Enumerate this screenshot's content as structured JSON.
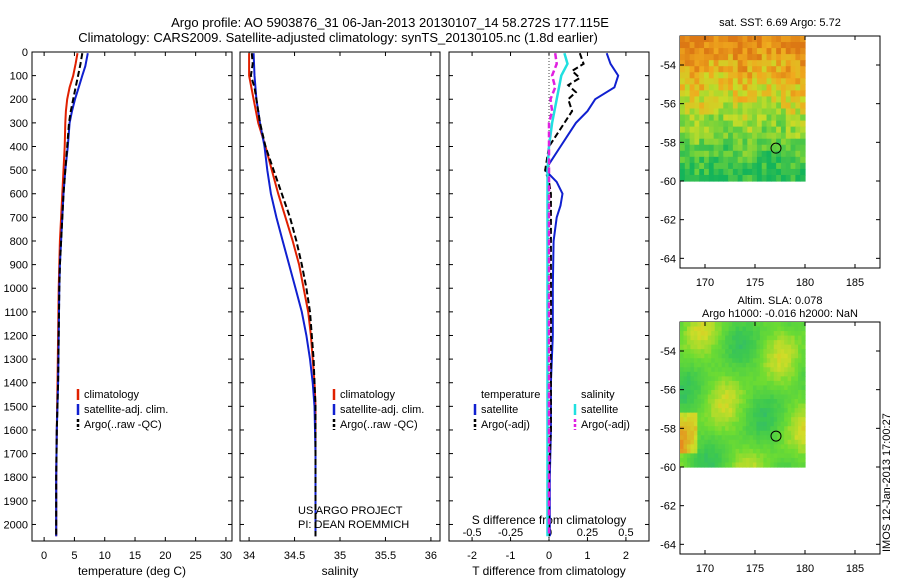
{
  "header": {
    "line1": "Argo profile: AO 5903876_31 06-Jan-2013 20130107_14 58.272S 177.115E",
    "line2": "Climatology: CARS2009. Satellite-adjusted climatology: synTS_20130105.nc (1.8d earlier)"
  },
  "colors": {
    "climatology": "#e02000",
    "satellite": "#1020d0",
    "argo": "#000000",
    "sal_satellite": "#20e0e0",
    "sal_argo": "#e020e0"
  },
  "chart_data": [
    {
      "type": "line",
      "panel": "temperature",
      "xlabel": "temperature (deg C)",
      "ylabel": "",
      "xlim": [
        -2,
        31
      ],
      "ylim": [
        2070,
        0
      ],
      "xticks": [
        0,
        5,
        10,
        15,
        20,
        25,
        30
      ],
      "yticks": [
        0,
        100,
        200,
        300,
        400,
        500,
        600,
        700,
        800,
        900,
        1000,
        1100,
        1200,
        1300,
        1400,
        1500,
        1600,
        1700,
        1800,
        1900,
        2000
      ],
      "legend": [
        "climatology",
        "satellite-adj. clim.",
        "Argo(..raw -QC)"
      ],
      "series": [
        {
          "name": "climatology",
          "style": "solid",
          "color_key": "climatology",
          "points": [
            [
              5.5,
              5
            ],
            [
              5.2,
              50
            ],
            [
              4.8,
              100
            ],
            [
              4.2,
              150
            ],
            [
              3.8,
              200
            ],
            [
              3.6,
              250
            ],
            [
              3.5,
              300
            ],
            [
              3.4,
              400
            ],
            [
              3.2,
              500
            ],
            [
              3.0,
              600
            ],
            [
              2.8,
              700
            ],
            [
              2.6,
              800
            ],
            [
              2.5,
              900
            ],
            [
              2.4,
              1000
            ],
            [
              2.3,
              1200
            ],
            [
              2.2,
              1400
            ],
            [
              2.1,
              1600
            ],
            [
              2.0,
              1800
            ],
            [
              2.0,
              2000
            ],
            [
              2.0,
              2050
            ]
          ]
        },
        {
          "name": "satellite-adj. clim.",
          "style": "solid",
          "color_key": "satellite",
          "points": [
            [
              7.2,
              5
            ],
            [
              6.8,
              60
            ],
            [
              6.3,
              100
            ],
            [
              5.7,
              150
            ],
            [
              5.1,
              200
            ],
            [
              4.6,
              250
            ],
            [
              4.2,
              300
            ],
            [
              3.9,
              400
            ],
            [
              3.5,
              500
            ],
            [
              3.2,
              600
            ],
            [
              3.0,
              700
            ],
            [
              2.8,
              800
            ],
            [
              2.6,
              900
            ],
            [
              2.5,
              1000
            ],
            [
              2.4,
              1200
            ],
            [
              2.3,
              1400
            ],
            [
              2.1,
              1600
            ],
            [
              2.0,
              1800
            ],
            [
              2.0,
              2000
            ],
            [
              2.0,
              2050
            ]
          ]
        },
        {
          "name": "Argo(..raw -QC)",
          "style": "dashed",
          "color_key": "argo",
          "points": [
            [
              6.3,
              5
            ],
            [
              6.0,
              50
            ],
            [
              5.6,
              100
            ],
            [
              5.2,
              150
            ],
            [
              4.8,
              200
            ],
            [
              4.4,
              250
            ],
            [
              4.1,
              300
            ],
            [
              3.8,
              400
            ],
            [
              3.5,
              500
            ],
            [
              3.2,
              600
            ],
            [
              3.0,
              700
            ],
            [
              2.8,
              800
            ],
            [
              2.6,
              900
            ],
            [
              2.5,
              1000
            ],
            [
              2.4,
              1200
            ],
            [
              2.3,
              1400
            ],
            [
              2.1,
              1600
            ],
            [
              2.0,
              1800
            ],
            [
              2.0,
              2000
            ],
            [
              2.0,
              2050
            ]
          ]
        }
      ]
    },
    {
      "type": "line",
      "panel": "salinity",
      "xlabel": "salinity",
      "ylabel": "",
      "xlim": [
        33.9,
        36.1
      ],
      "ylim": [
        2070,
        0
      ],
      "xticks": [
        34,
        34.5,
        35,
        35.5,
        36
      ],
      "xticklabels": [
        "34",
        "34.5",
        "35",
        "35.5",
        "36"
      ],
      "legend": [
        "climatology",
        "satellite-adj. clim.",
        "Argo(..raw -QC)"
      ],
      "series": [
        {
          "name": "climatology",
          "style": "solid",
          "color_key": "climatology",
          "points": [
            [
              34.0,
              5
            ],
            [
              34.0,
              100
            ],
            [
              34.05,
              200
            ],
            [
              34.1,
              300
            ],
            [
              34.18,
              400
            ],
            [
              34.25,
              500
            ],
            [
              34.32,
              600
            ],
            [
              34.4,
              700
            ],
            [
              34.48,
              800
            ],
            [
              34.55,
              900
            ],
            [
              34.6,
              1000
            ],
            [
              34.65,
              1100
            ],
            [
              34.68,
              1200
            ],
            [
              34.7,
              1300
            ],
            [
              34.72,
              1400
            ],
            [
              34.73,
              1500
            ],
            [
              34.73,
              1700
            ],
            [
              34.73,
              1900
            ],
            [
              34.73,
              2050
            ]
          ]
        },
        {
          "name": "satellite-adj. clim.",
          "style": "solid",
          "color_key": "satellite",
          "points": [
            [
              34.05,
              5
            ],
            [
              34.06,
              100
            ],
            [
              34.08,
              200
            ],
            [
              34.12,
              300
            ],
            [
              34.17,
              400
            ],
            [
              34.2,
              500
            ],
            [
              34.24,
              600
            ],
            [
              34.3,
              700
            ],
            [
              34.37,
              800
            ],
            [
              34.44,
              900
            ],
            [
              34.51,
              1000
            ],
            [
              34.58,
              1100
            ],
            [
              34.63,
              1200
            ],
            [
              34.67,
              1300
            ],
            [
              34.7,
              1400
            ],
            [
              34.72,
              1500
            ],
            [
              34.73,
              1700
            ],
            [
              34.73,
              1900
            ],
            [
              34.73,
              2050
            ]
          ]
        },
        {
          "name": "Argo(..raw -QC)",
          "style": "dashed",
          "color_key": "argo",
          "points": [
            [
              34.03,
              5
            ],
            [
              34.04,
              50
            ],
            [
              34.02,
              100
            ],
            [
              34.06,
              150
            ],
            [
              34.08,
              200
            ],
            [
              34.12,
              300
            ],
            [
              34.18,
              400
            ],
            [
              34.27,
              500
            ],
            [
              34.36,
              600
            ],
            [
              34.45,
              700
            ],
            [
              34.52,
              800
            ],
            [
              34.58,
              900
            ],
            [
              34.63,
              1000
            ],
            [
              34.67,
              1100
            ],
            [
              34.69,
              1200
            ],
            [
              34.71,
              1300
            ],
            [
              34.72,
              1400
            ],
            [
              34.73,
              1500
            ],
            [
              34.73,
              1700
            ],
            [
              34.73,
              1900
            ],
            [
              34.73,
              2050
            ]
          ]
        }
      ]
    },
    {
      "type": "line",
      "panel": "difference",
      "xlabel": "T difference from climatology",
      "xlabel_top": "S difference from climatology",
      "ylabel": "",
      "xlim": [
        -2.6,
        2.6
      ],
      "ylim": [
        2070,
        0
      ],
      "xticks": [
        -2,
        -1,
        0,
        1,
        2
      ],
      "xticks_top": [
        -0.5,
        -0.25,
        0,
        0.25,
        0.5
      ],
      "legend_titles": [
        "temperature",
        "salinity"
      ],
      "legend": [
        "satellite",
        "Argo(-adj)",
        "satellite",
        "Argo(-adj)"
      ],
      "series": [
        {
          "name": "satellite",
          "group": "temperature",
          "style": "solid",
          "color_key": "satellite",
          "points": [
            [
              1.5,
              5
            ],
            [
              1.6,
              50
            ],
            [
              1.8,
              100
            ],
            [
              1.7,
              150
            ],
            [
              1.2,
              200
            ],
            [
              1.0,
              250
            ],
            [
              0.7,
              300
            ],
            [
              0.5,
              350
            ],
            [
              0.3,
              400
            ],
            [
              0.1,
              450
            ],
            [
              -0.1,
              500
            ],
            [
              0.2,
              550
            ],
            [
              0.35,
              600
            ],
            [
              0.3,
              650
            ],
            [
              0.2,
              700
            ],
            [
              0.12,
              800
            ],
            [
              0.1,
              1000
            ],
            [
              0.1,
              1200
            ],
            [
              0.05,
              1400
            ],
            [
              0.05,
              1600
            ],
            [
              0.02,
              1800
            ],
            [
              0.02,
              2000
            ],
            [
              0.02,
              2050
            ]
          ]
        },
        {
          "name": "Argo(-adj)",
          "group": "temperature",
          "style": "dashed",
          "color_key": "argo",
          "points": [
            [
              0.8,
              5
            ],
            [
              0.9,
              50
            ],
            [
              0.6,
              80
            ],
            [
              0.8,
              110
            ],
            [
              0.5,
              140
            ],
            [
              0.7,
              170
            ],
            [
              0.5,
              200
            ],
            [
              0.6,
              250
            ],
            [
              0.4,
              300
            ],
            [
              0.2,
              350
            ],
            [
              0.0,
              400
            ],
            [
              -0.05,
              450
            ],
            [
              -0.1,
              500
            ],
            [
              0.0,
              550
            ],
            [
              0.05,
              600
            ],
            [
              0.05,
              700
            ],
            [
              0.05,
              800
            ],
            [
              0.05,
              1000
            ],
            [
              0.05,
              1200
            ],
            [
              0.05,
              1400
            ],
            [
              0.05,
              1600
            ],
            [
              0.0,
              1800
            ],
            [
              0.0,
              2000
            ],
            [
              0.0,
              2050
            ]
          ]
        },
        {
          "name": "satellite",
          "group": "salinity",
          "style": "solid",
          "color_key": "sal_satellite",
          "points": [
            [
              0.1,
              5
            ],
            [
              0.12,
              50
            ],
            [
              0.08,
              100
            ],
            [
              0.05,
              200
            ],
            [
              0.02,
              300
            ],
            [
              0.0,
              400
            ],
            [
              -0.01,
              500
            ],
            [
              -0.01,
              700
            ],
            [
              -0.01,
              900
            ],
            [
              -0.01,
              1100
            ],
            [
              -0.01,
              1300
            ],
            [
              -0.01,
              1500
            ],
            [
              -0.01,
              1700
            ],
            [
              -0.01,
              1900
            ],
            [
              -0.01,
              2050
            ]
          ]
        },
        {
          "name": "Argo(-adj)",
          "group": "salinity",
          "style": "dashed",
          "color_key": "sal_argo",
          "points": [
            [
              0.04,
              5
            ],
            [
              0.05,
              50
            ],
            [
              0.02,
              100
            ],
            [
              0.04,
              150
            ],
            [
              0.01,
              200
            ],
            [
              0.02,
              250
            ],
            [
              0.0,
              300
            ],
            [
              0.0,
              400
            ],
            [
              0.0,
              600
            ],
            [
              0.0,
              800
            ],
            [
              0.0,
              1000
            ],
            [
              0.0,
              1500
            ],
            [
              0.0,
              2050
            ]
          ]
        }
      ]
    },
    {
      "type": "heatmap",
      "panel": "sst_map",
      "title": "sat. SST: 6.69 Argo: 5.72",
      "xlim": [
        167.5,
        187.5
      ],
      "ylim": [
        -64.5,
        -52.5
      ],
      "xticks": [
        170,
        175,
        180,
        185
      ],
      "yticks": [
        -54,
        -56,
        -58,
        -60,
        -62,
        -64
      ],
      "xticklabels": [
        "170",
        "175",
        "180",
        "185"
      ],
      "yticklabels": [
        "-54",
        "-56",
        "-58",
        "-60",
        "-62",
        "-64"
      ],
      "data_extent": [
        167.5,
        180,
        -60,
        -52.5
      ],
      "marker": [
        177.1,
        -58.3
      ]
    },
    {
      "type": "heatmap",
      "panel": "sla_map",
      "title": "Altim. SLA: 0.078",
      "subtitle": "Argo h1000: -0.016 h2000: NaN",
      "xlim": [
        167.5,
        187.5
      ],
      "ylim": [
        -64.5,
        -52.5
      ],
      "xticks": [
        170,
        175,
        180,
        185
      ],
      "yticks": [
        -54,
        -56,
        -58,
        -60,
        -62,
        -64
      ],
      "xticklabels": [
        "170",
        "175",
        "180",
        "185"
      ],
      "yticklabels": [
        "-54",
        "-56",
        "-58",
        "-60",
        "-62",
        "-64"
      ],
      "data_extent": [
        167.5,
        180,
        -60,
        -52.5
      ],
      "marker": [
        177.1,
        -58.4
      ]
    }
  ],
  "annotations": {
    "project": "US ARGO PROJECT",
    "pi": "PI: DEAN ROEMMICH",
    "stamp": "IMOS 12-Jan-2013 17:00:27"
  }
}
